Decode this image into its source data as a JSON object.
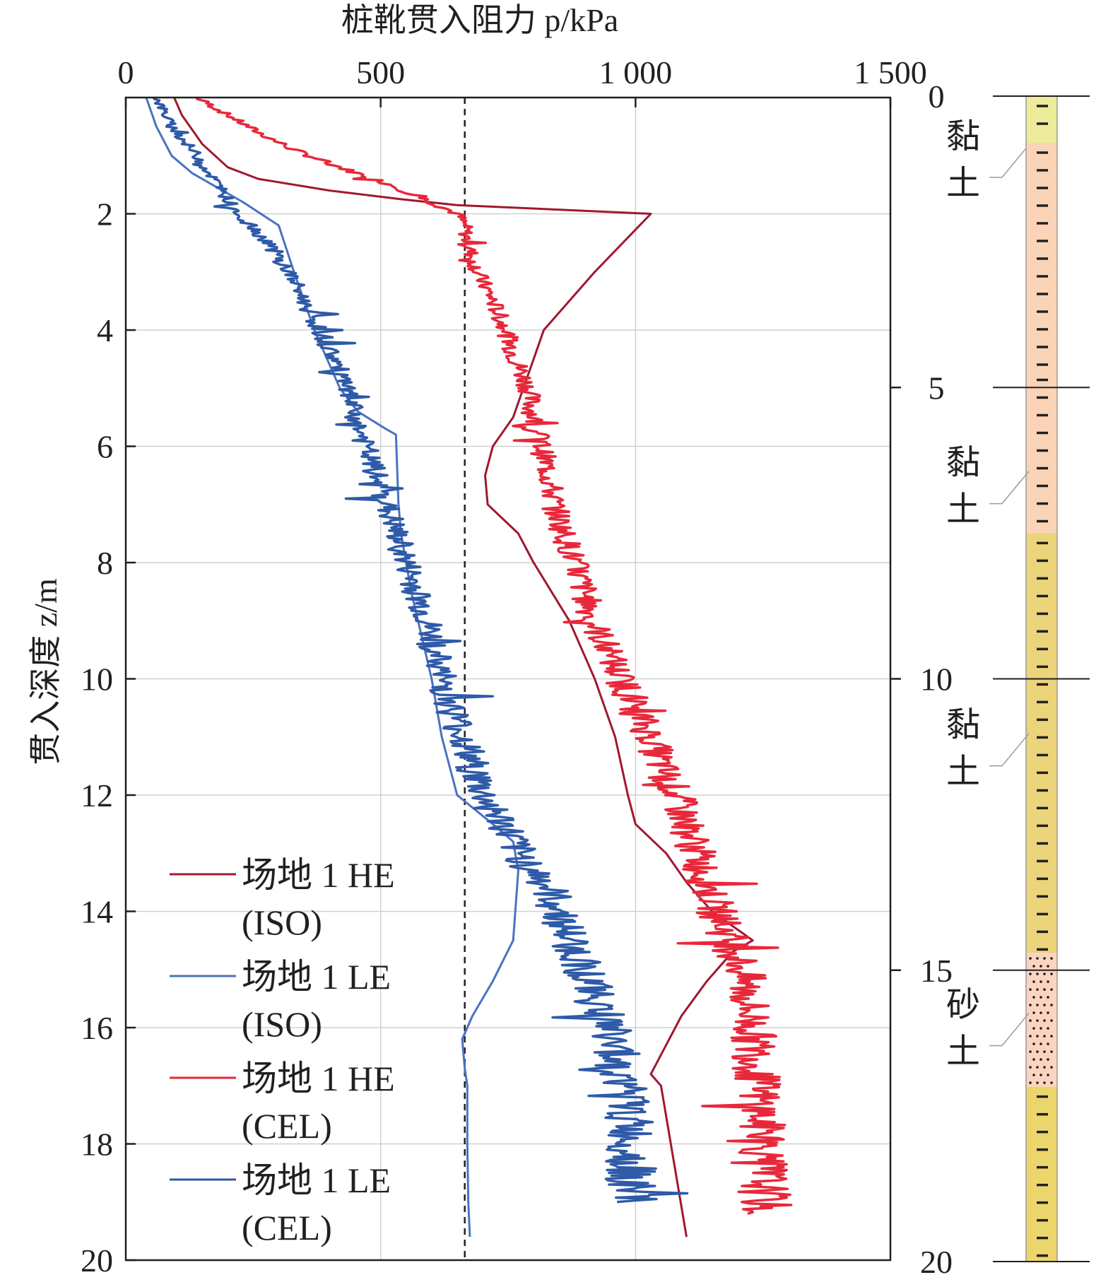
{
  "chart_data": {
    "type": "line",
    "xlabel": "桩靴贯入阻力 p/kPa",
    "ylabel": "贯入深度 z/m",
    "xlim": [
      0,
      1500
    ],
    "ylim": [
      0,
      20
    ],
    "y_inverted": true,
    "x_axis_position": "top",
    "x_ticks": [
      0,
      500,
      1000,
      1500
    ],
    "x_tick_labels": [
      "0",
      "500",
      "1 000",
      "1 500"
    ],
    "y_ticks": [
      2,
      4,
      6,
      8,
      10,
      12,
      14,
      16,
      18,
      20
    ],
    "y_tick_labels": [
      "2",
      "4",
      "6",
      "8",
      "10",
      "12",
      "14",
      "16",
      "18",
      "20"
    ],
    "grid": true,
    "reference_line": {
      "x": 665,
      "style": "dashed"
    },
    "legend_position": "bottom-left",
    "series": [
      {
        "name": "场地 1 HE (ISO)",
        "color": "#a0182f",
        "style": "smooth",
        "x": [
          95,
          110,
          150,
          200,
          260,
          400,
          540,
          650,
          1030,
          920,
          820,
          800,
          780,
          760,
          720,
          705,
          710,
          770,
          800,
          870,
          920,
          960,
          985,
          1000,
          1060,
          1100,
          1150,
          1230,
          1190,
          1140,
          1090,
          1060,
          1030,
          1050,
          1100
        ],
        "y": [
          0,
          0.3,
          0.8,
          1.2,
          1.4,
          1.6,
          1.75,
          1.85,
          2.0,
          3.0,
          4.0,
          4.5,
          5.0,
          5.5,
          6.0,
          6.5,
          7.0,
          7.5,
          8.0,
          9.0,
          10.0,
          11.0,
          12.0,
          12.5,
          13.0,
          13.5,
          14.0,
          14.5,
          14.7,
          15.2,
          15.8,
          16.3,
          16.8,
          17.0,
          19.6
        ]
      },
      {
        "name": "场地 1 LE (ISO)",
        "color": "#4a72c0",
        "style": "smooth",
        "x": [
          40,
          60,
          90,
          130,
          160,
          230,
          300,
          330,
          370,
          420,
          455,
          510,
          530,
          535,
          540,
          560,
          600,
          620,
          650,
          720,
          760,
          770,
          760,
          720,
          680,
          660,
          665,
          670,
          670,
          672,
          675
        ],
        "y": [
          0,
          0.5,
          1.0,
          1.3,
          1.45,
          1.8,
          2.2,
          3.0,
          4.0,
          5.0,
          5.4,
          5.7,
          5.8,
          7.0,
          7.5,
          8.5,
          10.0,
          11.0,
          12.0,
          12.5,
          12.8,
          13.3,
          14.5,
          15.2,
          15.8,
          16.2,
          16.7,
          17.0,
          18.0,
          19.0,
          19.6
        ]
      },
      {
        "name": "场地 1 HE (CEL)",
        "color": "#e8283a",
        "style": "noisy",
        "x": [
          140,
          200,
          260,
          330,
          420,
          520,
          600,
          650,
          665,
          670,
          690,
          720,
          745,
          765,
          790,
          800,
          815,
          830,
          840,
          860,
          880,
          900,
          915,
          945,
          970,
          1000,
          1030,
          1050,
          1080,
          1100,
          1120,
          1140,
          1160,
          1185,
          1210,
          1220,
          1230,
          1240,
          1250,
          1255
        ],
        "y": [
          0,
          0.3,
          0.6,
          0.9,
          1.2,
          1.5,
          1.8,
          2.0,
          2.2,
          2.5,
          3.0,
          3.5,
          4.0,
          4.5,
          5.0,
          5.5,
          6.0,
          6.5,
          7.0,
          7.5,
          8.0,
          8.5,
          9.0,
          9.5,
          10.0,
          10.5,
          11.0,
          11.5,
          12.0,
          12.5,
          13.0,
          13.5,
          14.0,
          14.5,
          15.0,
          15.5,
          16.0,
          17.0,
          18.0,
          19.2
        ]
      },
      {
        "name": "场地 1 LE (CEL)",
        "color": "#2e5aa8",
        "style": "noisy",
        "x": [
          60,
          90,
          140,
          180,
          220,
          280,
          320,
          350,
          380,
          410,
          430,
          450,
          470,
          490,
          510,
          530,
          550,
          570,
          590,
          620,
          660,
          700,
          740,
          770,
          820,
          850,
          870,
          900,
          920,
          950,
          960,
          980,
          990,
          990
        ],
        "y": [
          0,
          0.5,
          1.0,
          1.5,
          2.0,
          2.5,
          3.0,
          3.5,
          4.0,
          4.5,
          5.0,
          5.5,
          6.0,
          6.5,
          7.0,
          7.5,
          8.0,
          8.5,
          9.0,
          10.0,
          11.0,
          12.0,
          12.5,
          13.0,
          13.5,
          14.0,
          14.5,
          15.0,
          15.5,
          16.0,
          16.5,
          17.0,
          18.0,
          19.0
        ]
      }
    ],
    "soil_column": {
      "ticks": [
        0,
        5,
        10,
        15,
        20
      ],
      "tick_labels": [
        "0",
        "5",
        "10",
        "15",
        "20"
      ],
      "layers": [
        {
          "label": "黏土",
          "top": 0,
          "bottom": 0.8,
          "color": "#ecec9a",
          "pattern": "dash",
          "label_depth": 1.2
        },
        {
          "label": "",
          "top": 0.8,
          "bottom": 4.7,
          "color": "#fbd4b8",
          "pattern": "dash"
        },
        {
          "label": "黏土",
          "top": 4.7,
          "bottom": 7.5,
          "color": "#fbd4b8",
          "pattern": "dash",
          "label_depth": 6.8
        },
        {
          "label": "黏土",
          "top": 7.5,
          "bottom": 14.7,
          "color": "#ecd47a",
          "pattern": "dash",
          "label_depth": 11.3
        },
        {
          "label": "砂土",
          "top": 14.7,
          "bottom": 17.0,
          "color": "#fbd4c0",
          "pattern": "dot",
          "label_depth": 16.1
        },
        {
          "label": "",
          "top": 17.0,
          "bottom": 20.0,
          "color": "#ecd56a",
          "pattern": "dash"
        }
      ]
    }
  }
}
